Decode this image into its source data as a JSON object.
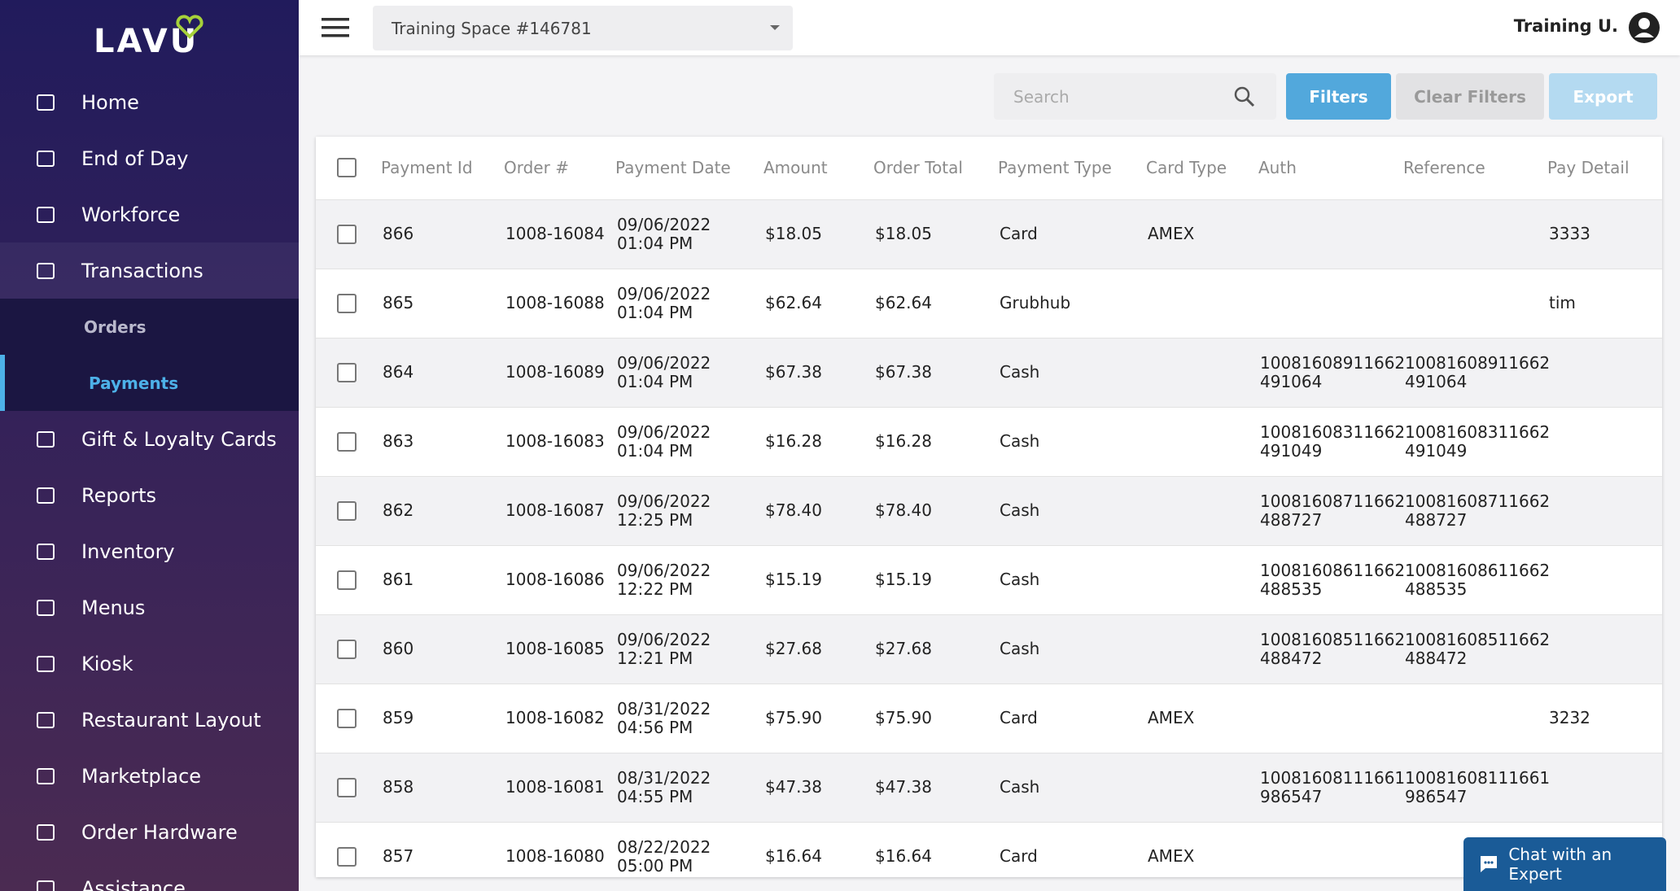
{
  "header": {
    "brand": "LAVU",
    "location": "Training Space #146781",
    "user": "Training U."
  },
  "sidebar": [
    {
      "label": "Home"
    },
    {
      "label": "End of Day"
    },
    {
      "label": "Workforce"
    },
    {
      "label": "Transactions",
      "open": true
    },
    {
      "label": "Orders",
      "sub": true
    },
    {
      "label": "Payments",
      "sub": true,
      "active": true
    },
    {
      "label": "Gift & Loyalty Cards"
    },
    {
      "label": "Reports"
    },
    {
      "label": "Inventory"
    },
    {
      "label": "Menus"
    },
    {
      "label": "Kiosk"
    },
    {
      "label": "Restaurant Layout"
    },
    {
      "label": "Marketplace"
    },
    {
      "label": "Order Hardware"
    },
    {
      "label": "Assistance"
    }
  ],
  "toolbar": {
    "search_placeholder": "Search",
    "filters": "Filters",
    "clear_filters": "Clear Filters",
    "export": "Export"
  },
  "table": {
    "columns": [
      "Payment Id",
      "Order #",
      "Payment Date",
      "Amount",
      "Order Total",
      "Payment Type",
      "Card Type",
      "Auth",
      "Reference",
      "Pay Detail"
    ],
    "rows": [
      {
        "id": "866",
        "order": "1008-16084",
        "date": [
          "09/06/2022",
          "01:04 PM"
        ],
        "amount": "$18.05",
        "total": "$18.05",
        "type": "Card",
        "card": "AMEX",
        "detail": "3333"
      },
      {
        "id": "865",
        "order": "1008-16088",
        "date": [
          "09/06/2022",
          "01:04 PM"
        ],
        "amount": "$62.64",
        "total": "$62.64",
        "type": "Grubhub",
        "detail": "tim"
      },
      {
        "id": "864",
        "order": "1008-16089",
        "date": [
          "09/06/2022",
          "01:04 PM"
        ],
        "amount": "$67.38",
        "total": "$67.38",
        "type": "Cash",
        "auth": [
          "10081608911662",
          "491064"
        ],
        "ref": [
          "10081608911662",
          "491064"
        ]
      },
      {
        "id": "863",
        "order": "1008-16083",
        "date": [
          "09/06/2022",
          "01:04 PM"
        ],
        "amount": "$16.28",
        "total": "$16.28",
        "type": "Cash",
        "auth": [
          "10081608311662",
          "491049"
        ],
        "ref": [
          "10081608311662",
          "491049"
        ]
      },
      {
        "id": "862",
        "order": "1008-16087",
        "date": [
          "09/06/2022",
          "12:25 PM"
        ],
        "amount": "$78.40",
        "total": "$78.40",
        "type": "Cash",
        "auth": [
          "10081608711662",
          "488727"
        ],
        "ref": [
          "10081608711662",
          "488727"
        ]
      },
      {
        "id": "861",
        "order": "1008-16086",
        "date": [
          "09/06/2022",
          "12:22 PM"
        ],
        "amount": "$15.19",
        "total": "$15.19",
        "type": "Cash",
        "auth": [
          "10081608611662",
          "488535"
        ],
        "ref": [
          "10081608611662",
          "488535"
        ]
      },
      {
        "id": "860",
        "order": "1008-16085",
        "date": [
          "09/06/2022",
          "12:21 PM"
        ],
        "amount": "$27.68",
        "total": "$27.68",
        "type": "Cash",
        "auth": [
          "10081608511662",
          "488472"
        ],
        "ref": [
          "10081608511662",
          "488472"
        ]
      },
      {
        "id": "859",
        "order": "1008-16082",
        "date": [
          "08/31/2022",
          "04:56 PM"
        ],
        "amount": "$75.90",
        "total": "$75.90",
        "type": "Card",
        "card": "AMEX",
        "detail": "3232"
      },
      {
        "id": "858",
        "order": "1008-16081",
        "date": [
          "08/31/2022",
          "04:55 PM"
        ],
        "amount": "$47.38",
        "total": "$47.38",
        "type": "Cash",
        "auth": [
          "10081608111661",
          "986547"
        ],
        "ref": [
          "10081608111661",
          "986547"
        ]
      },
      {
        "id": "857",
        "order": "1008-16080",
        "date": [
          "08/22/2022",
          "05:00 PM"
        ],
        "amount": "$16.64",
        "total": "$16.64",
        "type": "Card",
        "card": "AMEX"
      }
    ]
  },
  "chat": "Chat with an Expert"
}
